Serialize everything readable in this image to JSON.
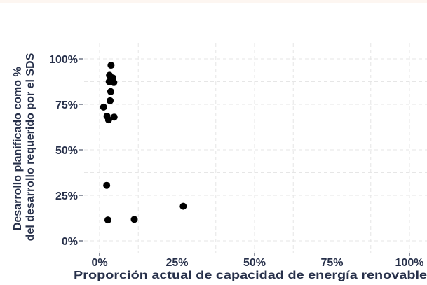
{
  "chart_data": {
    "type": "scatter",
    "title": "",
    "xlabel": "Proporción actual de capacidad de energía renovable",
    "ylabel_lines": [
      "Desarrollo planificado como %",
      "del desarrollo requerido por el SDS"
    ],
    "xlim": [
      0,
      100
    ],
    "ylim": [
      0,
      100
    ],
    "x_ticks": [
      0,
      25,
      50,
      75,
      100
    ],
    "x_tick_labels": [
      "0%",
      "25%",
      "50%",
      "75%",
      "100%"
    ],
    "y_ticks": [
      0,
      25,
      50,
      75,
      100
    ],
    "y_tick_labels": [
      "0%",
      "25%",
      "50%",
      "75%",
      "100%"
    ],
    "grid": true,
    "point_color": "#000000",
    "series": [
      {
        "name": "",
        "points": [
          {
            "x": 3.7,
            "y": 96.5
          },
          {
            "x": 3.2,
            "y": 91.0
          },
          {
            "x": 4.3,
            "y": 89.5
          },
          {
            "x": 3.1,
            "y": 87.5
          },
          {
            "x": 4.6,
            "y": 87.0
          },
          {
            "x": 3.6,
            "y": 82.0
          },
          {
            "x": 3.4,
            "y": 77.0
          },
          {
            "x": 1.3,
            "y": 73.5
          },
          {
            "x": 2.4,
            "y": 68.5
          },
          {
            "x": 4.7,
            "y": 68.0
          },
          {
            "x": 2.9,
            "y": 66.5
          },
          {
            "x": 2.3,
            "y": 30.5
          },
          {
            "x": 27.0,
            "y": 19.0
          },
          {
            "x": 2.7,
            "y": 11.5
          },
          {
            "x": 11.2,
            "y": 11.8
          }
        ]
      }
    ]
  }
}
